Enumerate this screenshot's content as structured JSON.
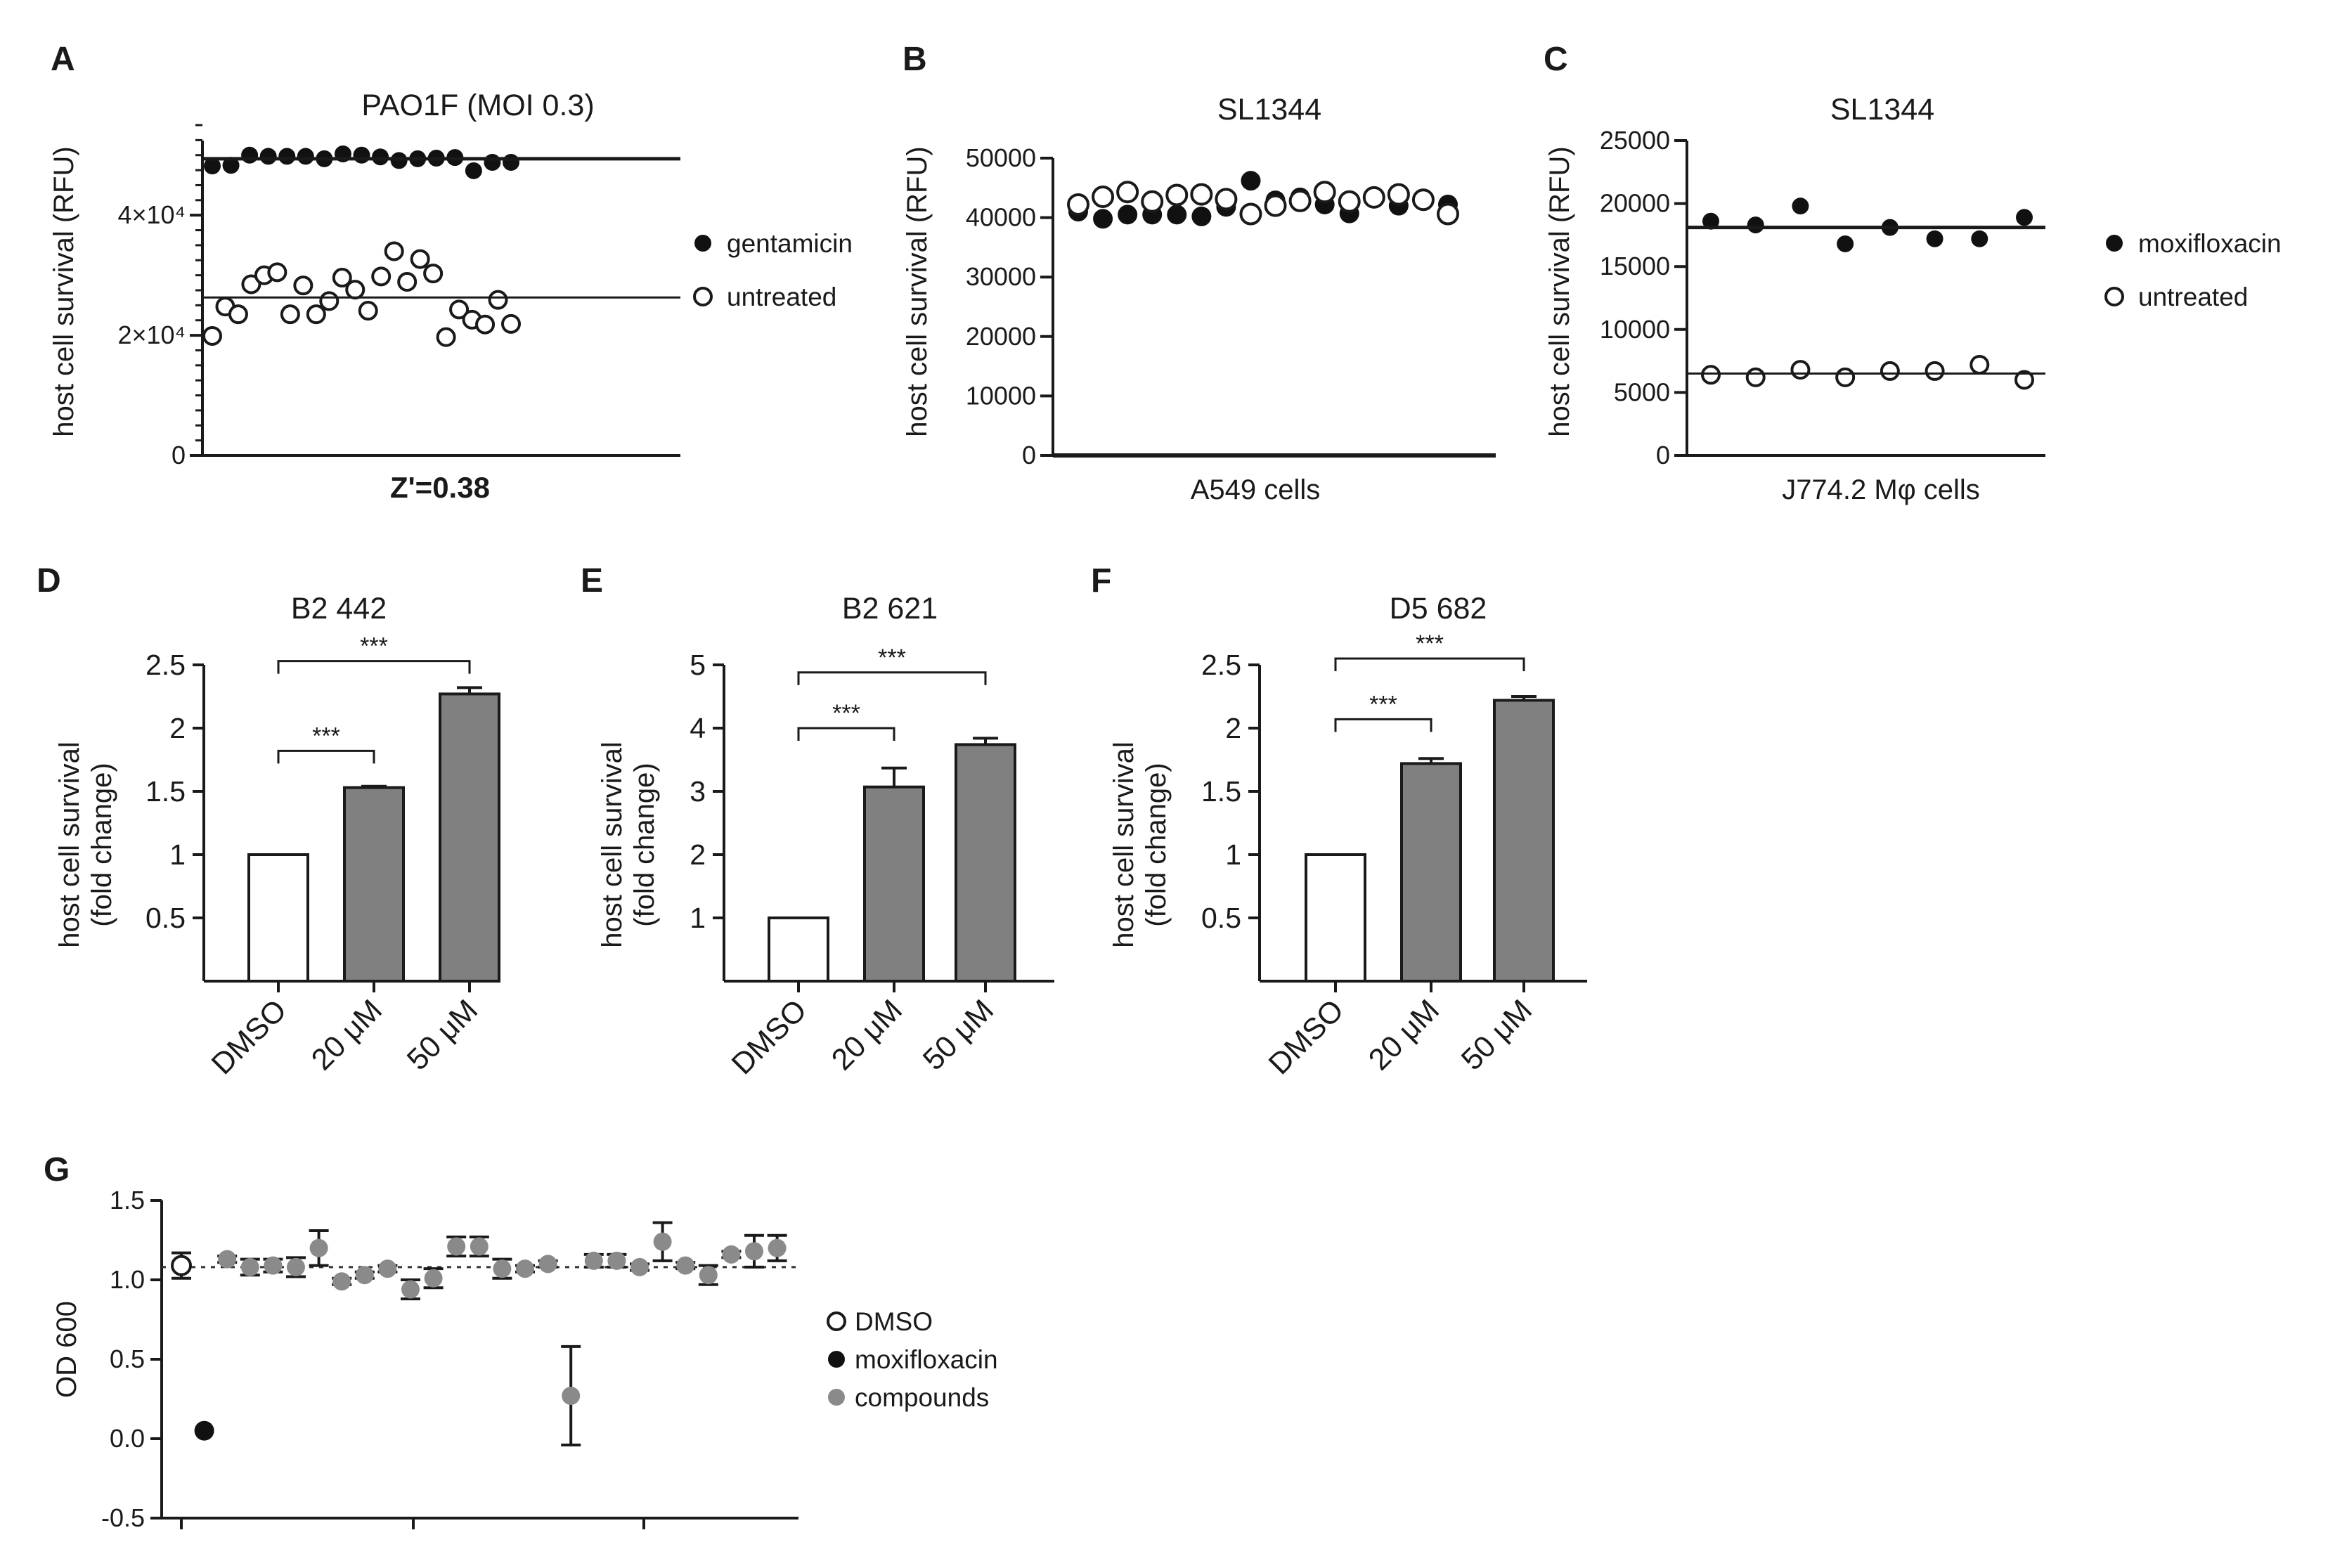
{
  "chart_data": [
    {
      "panel": "A",
      "type": "scatter",
      "title": "PAO1F (MOI 0.3)",
      "ylabel": "host cell survival (RFU)",
      "xlabel": "Z'=0.38",
      "ylim": [
        0,
        55000
      ],
      "yticks": [
        0,
        20000,
        40000
      ],
      "ytick_labels": [
        "0",
        "2×10⁴",
        "4×10⁴"
      ],
      "series": [
        {
          "name": "gentamicin",
          "marker": "filled",
          "values": [
            48200,
            48300,
            50000,
            49800,
            49800,
            49800,
            49400,
            50200,
            50000,
            49700,
            49100,
            49400,
            49500,
            49600,
            47400,
            48800,
            48800
          ],
          "mean": 49400
        },
        {
          "name": "untreated",
          "marker": "open",
          "values": [
            19900,
            24800,
            23500,
            28500,
            30000,
            30500,
            23500,
            28300,
            23500,
            25700,
            29600,
            27600,
            24100,
            29800,
            34000,
            28900,
            32700,
            30300,
            19700,
            24300,
            22600,
            21800,
            25900,
            21900
          ],
          "mean": 26300
        }
      ]
    },
    {
      "panel": "B",
      "type": "scatter",
      "title": "SL1344",
      "ylabel": "host cell survival (RFU)",
      "xlabel": "A549 cells",
      "ylim": [
        0,
        50000
      ],
      "yticks": [
        0,
        10000,
        20000,
        30000,
        40000,
        50000
      ],
      "ytick_labels": [
        "0",
        "10000",
        "20000",
        "30000",
        "40000",
        "50000"
      ],
      "series": [
        {
          "name": "moxifloxacin",
          "marker": "filled",
          "values": [
            41000,
            39800,
            40500,
            40500,
            40500,
            40200,
            41800,
            46200,
            42900,
            43400,
            42200,
            40700,
            43600,
            42000,
            43100,
            42200
          ]
        },
        {
          "name": "untreated",
          "marker": "open",
          "values": [
            42200,
            43500,
            44300,
            42700,
            43800,
            43900,
            43100,
            40600,
            42000,
            42800,
            44300,
            42700,
            43400,
            43900,
            43000,
            40600
          ]
        }
      ]
    },
    {
      "panel": "C",
      "type": "scatter",
      "title": "SL1344",
      "ylabel": "host cell survival (RFU)",
      "xlabel": "J774.2 Mφ cells",
      "ylim": [
        0,
        25000
      ],
      "yticks": [
        0,
        5000,
        10000,
        15000,
        20000,
        25000
      ],
      "ytick_labels": [
        "0",
        "5000",
        "10000",
        "15000",
        "20000",
        "25000"
      ],
      "series": [
        {
          "name": "moxifloxacin",
          "marker": "filled",
          "values": [
            18600,
            18300,
            19800,
            16800,
            18100,
            17200,
            17200,
            18900
          ],
          "mean": 18100
        },
        {
          "name": "untreated",
          "marker": "open",
          "values": [
            6400,
            6200,
            6800,
            6200,
            6700,
            6700,
            7200,
            6000
          ],
          "mean": 6500
        }
      ]
    },
    {
      "panel": "D",
      "type": "bar",
      "title": "B2 442",
      "ylabel": "host cell survival",
      "ylabel2": "(fold change)",
      "categories": [
        "DMSO",
        "20 μM",
        "50 μM"
      ],
      "values": [
        1.0,
        1.53,
        2.27
      ],
      "errors": [
        0,
        0.01,
        0.05
      ],
      "ylim": [
        0,
        2.5
      ],
      "yticks": [
        0.5,
        1,
        1.5,
        2,
        2.5
      ],
      "ytick_labels": [
        "0.5",
        "1",
        "1.5",
        "2",
        "2.5"
      ],
      "significance": [
        {
          "from": 0,
          "to": 1,
          "label": "***",
          "y": 1.82
        },
        {
          "from": 0,
          "to": 2,
          "label": "***",
          "y": 2.53
        }
      ]
    },
    {
      "panel": "E",
      "type": "bar",
      "title": "B2 621",
      "ylabel": "host cell survival",
      "ylabel2": "(fold change)",
      "categories": [
        "DMSO",
        "20 μM",
        "50 μM"
      ],
      "values": [
        1.0,
        3.07,
        3.74
      ],
      "errors": [
        0,
        0.3,
        0.1
      ],
      "ylim": [
        0,
        5
      ],
      "yticks": [
        1,
        2,
        3,
        4,
        5
      ],
      "ytick_labels": [
        "1",
        "2",
        "3",
        "4",
        "5"
      ],
      "significance": [
        {
          "from": 0,
          "to": 1,
          "label": "***",
          "y": 4.0
        },
        {
          "from": 0,
          "to": 2,
          "label": "***",
          "y": 4.88
        }
      ]
    },
    {
      "panel": "F",
      "type": "bar",
      "title": "D5 682",
      "ylabel": "host cell survival",
      "ylabel2": "(fold change)",
      "categories": [
        "DMSO",
        "20 μM",
        "50 μM"
      ],
      "values": [
        1.0,
        1.72,
        2.22
      ],
      "errors": [
        0,
        0.04,
        0.03
      ],
      "ylim": [
        0,
        2.5
      ],
      "yticks": [
        0.5,
        1,
        1.5,
        2,
        2.5
      ],
      "ytick_labels": [
        "0.5",
        "1",
        "1.5",
        "2",
        "2.5"
      ],
      "significance": [
        {
          "from": 0,
          "to": 1,
          "label": "***",
          "y": 2.07
        },
        {
          "from": 0,
          "to": 2,
          "label": "***",
          "y": 2.55
        }
      ]
    },
    {
      "panel": "G",
      "type": "scatter",
      "title": "",
      "ylabel": "OD 600",
      "xlabel": "",
      "ylim": [
        -0.5,
        1.5
      ],
      "yticks": [
        -0.5,
        0.0,
        0.5,
        1.0,
        1.5
      ],
      "ytick_labels": [
        "-0.5",
        "0.0",
        "0.5",
        "1.0",
        "1.5"
      ],
      "reference_line": 1.08,
      "series": [
        {
          "name": "DMSO",
          "marker": "open",
          "points": [
            {
              "x": 1,
              "y": 1.09,
              "err": 0.08
            }
          ]
        },
        {
          "name": "moxifloxacin",
          "marker": "filled",
          "points": [
            {
              "x": 2,
              "y": 0.05,
              "err": 0
            }
          ]
        },
        {
          "name": "compounds",
          "marker": "gray",
          "points": [
            {
              "x": 3,
              "y": 1.13,
              "err": 0.02
            },
            {
              "x": 4,
              "y": 1.08,
              "err": 0.05
            },
            {
              "x": 5,
              "y": 1.09,
              "err": 0.04
            },
            {
              "x": 6,
              "y": 1.08,
              "err": 0.06
            },
            {
              "x": 7,
              "y": 1.2,
              "err": 0.11
            },
            {
              "x": 8,
              "y": 0.99,
              "err": 0.02
            },
            {
              "x": 9,
              "y": 1.03,
              "err": 0.02
            },
            {
              "x": 10,
              "y": 1.07,
              "err": 0.02
            },
            {
              "x": 11,
              "y": 0.94,
              "err": 0.06
            },
            {
              "x": 12,
              "y": 1.01,
              "err": 0.06
            },
            {
              "x": 13,
              "y": 1.21,
              "err": 0.06
            },
            {
              "x": 14,
              "y": 1.21,
              "err": 0.06
            },
            {
              "x": 15,
              "y": 1.07,
              "err": 0.06
            },
            {
              "x": 16,
              "y": 1.07,
              "err": 0.02
            },
            {
              "x": 17,
              "y": 1.1,
              "err": 0.02
            },
            {
              "x": 18,
              "y": 0.27,
              "err": 0.31
            },
            {
              "x": 19,
              "y": 1.12,
              "err": 0.04
            },
            {
              "x": 20,
              "y": 1.12,
              "err": 0.04
            },
            {
              "x": 21,
              "y": 1.08,
              "err": 0.02
            },
            {
              "x": 22,
              "y": 1.24,
              "err": 0.12
            },
            {
              "x": 23,
              "y": 1.09,
              "err": 0.02
            },
            {
              "x": 24,
              "y": 1.03,
              "err": 0.06
            },
            {
              "x": 25,
              "y": 1.16,
              "err": 0.02
            },
            {
              "x": 26,
              "y": 1.18,
              "err": 0.1
            },
            {
              "x": 27,
              "y": 1.2,
              "err": 0.08
            }
          ]
        }
      ]
    }
  ]
}
